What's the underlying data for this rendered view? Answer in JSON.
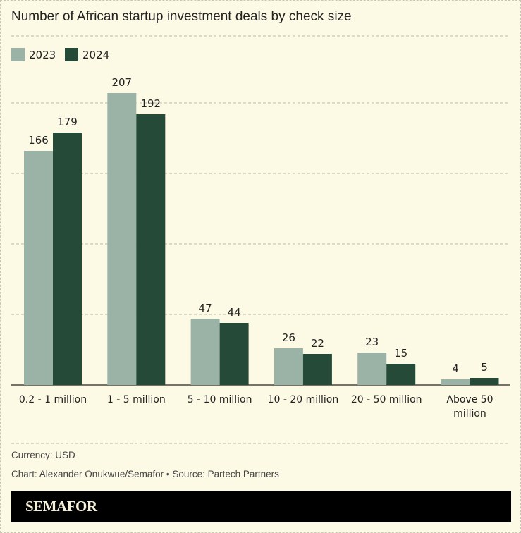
{
  "chart_data": {
    "type": "bar",
    "title": "Number of African startup investment deals by check size",
    "categories": [
      "0.2 - 1 million",
      "1 - 5 million",
      "5 - 10 million",
      "10 - 20 million",
      "20 - 50 million",
      "Above 50 million"
    ],
    "series": [
      {
        "name": "2023",
        "values": [
          166,
          207,
          47,
          26,
          23,
          4
        ],
        "color": "#9bb3a7"
      },
      {
        "name": "2024",
        "values": [
          179,
          192,
          44,
          22,
          15,
          5
        ],
        "color": "#264a38"
      }
    ],
    "ylim": [
      0,
      200
    ],
    "gridlines": [
      0,
      50,
      100,
      150,
      200
    ],
    "grid": true,
    "legend": "top-left",
    "xlabel": "",
    "ylabel": ""
  },
  "notes": {
    "currency": "Currency: USD",
    "credit": "Chart: Alexander Onukwue/Semafor • Source: Partech Partners"
  },
  "logo": "SEMAFOR"
}
